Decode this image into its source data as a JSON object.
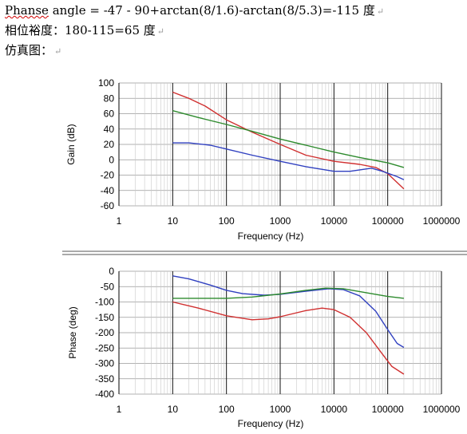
{
  "document": {
    "line1": {
      "parts": [
        {
          "text": "Phanse",
          "squiggle": true
        },
        {
          "text": " angle = -47 - 90+arctan(8/1.6)-arctan(8/5.3)=-115 ",
          "squiggle": false
        },
        {
          "text": "度",
          "squiggle": false
        }
      ],
      "mark": "↵"
    },
    "line2": {
      "text": "相位裕度：180-115=65 度",
      "mark": "↵"
    },
    "line3": {
      "text": "仿真图：",
      "mark": "↵"
    }
  },
  "chart_data": [
    {
      "type": "line",
      "xscale": "log",
      "xlim": [
        1,
        1000000
      ],
      "ylim": [
        -60,
        100
      ],
      "x_ticks": [
        1,
        10,
        100,
        1000,
        10000,
        100000,
        1000000
      ],
      "x_tick_labels": [
        "1",
        "10",
        "100",
        "1000",
        "10000",
        "100000",
        "1000000"
      ],
      "y_ticks": [
        100,
        80,
        60,
        40,
        20,
        0,
        -20,
        -40,
        -60
      ],
      "xlabel": "Frequency (Hz)",
      "ylabel": "Gain (dB)",
      "grid": true,
      "series": [
        {
          "color": "#d03030",
          "points": [
            [
              10,
              88
            ],
            [
              20,
              80
            ],
            [
              40,
              70
            ],
            [
              100,
              52
            ],
            [
              300,
              36
            ],
            [
              1000,
              20
            ],
            [
              3000,
              6
            ],
            [
              10000,
              -2
            ],
            [
              30000,
              -6
            ],
            [
              60000,
              -10
            ],
            [
              100000,
              -18
            ],
            [
              200000,
              -38
            ]
          ]
        },
        {
          "color": "#2e8b2e",
          "points": [
            [
              10,
              64
            ],
            [
              30,
              55
            ],
            [
              100,
              46
            ],
            [
              300,
              37
            ],
            [
              1000,
              27
            ],
            [
              3000,
              19
            ],
            [
              10000,
              10
            ],
            [
              30000,
              3
            ],
            [
              100000,
              -4
            ],
            [
              200000,
              -10
            ]
          ]
        },
        {
          "color": "#3040c0",
          "points": [
            [
              10,
              22
            ],
            [
              20,
              22
            ],
            [
              50,
              19
            ],
            [
              100,
              14
            ],
            [
              300,
              6
            ],
            [
              1000,
              -2
            ],
            [
              3000,
              -9
            ],
            [
              10000,
              -15
            ],
            [
              20000,
              -15
            ],
            [
              50000,
              -11
            ],
            [
              80000,
              -15
            ],
            [
              150000,
              -22
            ],
            [
              200000,
              -26
            ]
          ]
        }
      ]
    },
    {
      "type": "line",
      "xscale": "log",
      "xlim": [
        1,
        1000000
      ],
      "ylim": [
        -400,
        0
      ],
      "x_ticks": [
        1,
        10,
        100,
        1000,
        10000,
        100000,
        1000000
      ],
      "x_tick_labels": [
        "1",
        "10",
        "100",
        "1000",
        "10000",
        "100000",
        "1000000"
      ],
      "y_ticks": [
        0,
        -50,
        -100,
        -150,
        -200,
        -250,
        -300,
        -350,
        -400
      ],
      "xlabel": "Frequency (Hz)",
      "ylabel": "Phase (deg)",
      "grid": true,
      "series": [
        {
          "color": "#3040c0",
          "points": [
            [
              10,
              -15
            ],
            [
              20,
              -25
            ],
            [
              50,
              -45
            ],
            [
              100,
              -62
            ],
            [
              200,
              -73
            ],
            [
              500,
              -78
            ],
            [
              1000,
              -75
            ],
            [
              3000,
              -65
            ],
            [
              8000,
              -57
            ],
            [
              15000,
              -60
            ],
            [
              30000,
              -80
            ],
            [
              60000,
              -130
            ],
            [
              100000,
              -190
            ],
            [
              150000,
              -235
            ],
            [
              200000,
              -248
            ]
          ]
        },
        {
          "color": "#2e8b2e",
          "points": [
            [
              10,
              -88
            ],
            [
              100,
              -88
            ],
            [
              300,
              -84
            ],
            [
              1000,
              -74
            ],
            [
              3000,
              -62
            ],
            [
              7000,
              -55
            ],
            [
              15000,
              -57
            ],
            [
              40000,
              -70
            ],
            [
              100000,
              -82
            ],
            [
              200000,
              -88
            ]
          ]
        },
        {
          "color": "#d03030",
          "points": [
            [
              10,
              -100
            ],
            [
              30,
              -120
            ],
            [
              100,
              -145
            ],
            [
              300,
              -158
            ],
            [
              600,
              -155
            ],
            [
              1000,
              -148
            ],
            [
              3000,
              -128
            ],
            [
              6000,
              -120
            ],
            [
              10000,
              -125
            ],
            [
              20000,
              -150
            ],
            [
              40000,
              -200
            ],
            [
              80000,
              -270
            ],
            [
              120000,
              -310
            ],
            [
              200000,
              -335
            ]
          ]
        }
      ]
    }
  ]
}
